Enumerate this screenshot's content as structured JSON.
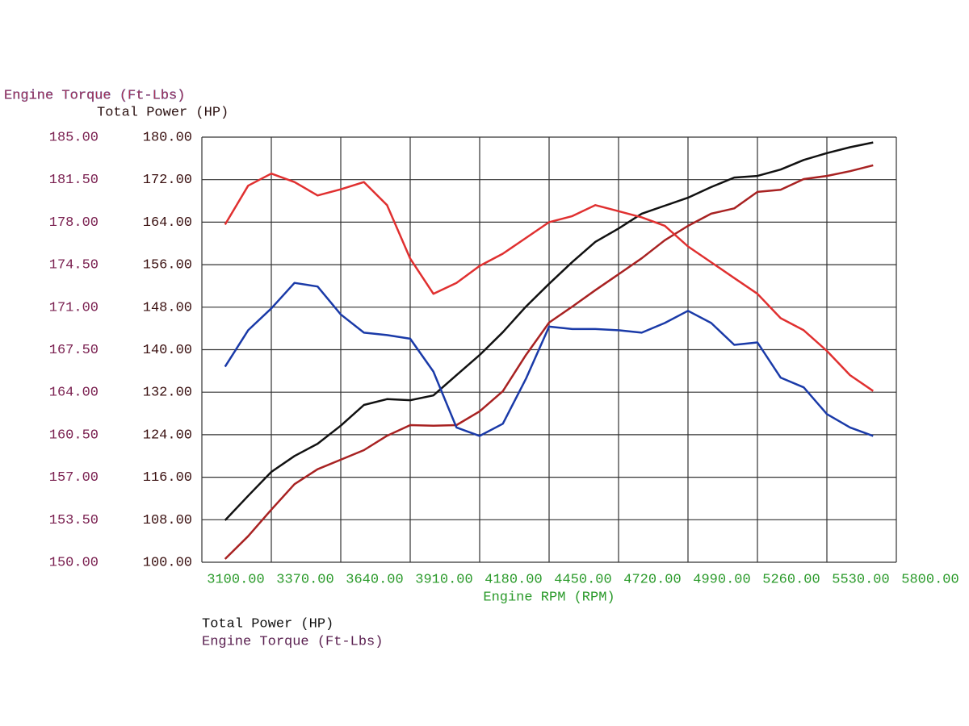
{
  "chart_data": {
    "type": "line",
    "y2_label": "Engine Torque (Ft-Lbs)",
    "y_label": "Total Power (HP)",
    "x_label": "Engine RPM (RPM)",
    "legend": [
      "Total Power (HP)",
      "Engine Torque (Ft-Lbs)"
    ],
    "grid": true,
    "xlim": [
      3100,
      5800
    ],
    "xticks": [
      {
        "value": 3100,
        "label": "3100.00"
      },
      {
        "value": 3370,
        "label": "3370.00"
      },
      {
        "value": 3640,
        "label": "3640.00"
      },
      {
        "value": 3910,
        "label": "3910.00"
      },
      {
        "value": 4180,
        "label": "4180.00"
      },
      {
        "value": 4450,
        "label": "4450.00"
      },
      {
        "value": 4720,
        "label": "4720.00"
      },
      {
        "value": 4990,
        "label": "4990.00"
      },
      {
        "value": 5260,
        "label": "5260.00"
      },
      {
        "value": 5530,
        "label": "5530.00"
      },
      {
        "value": 5800,
        "label": "5800.00"
      }
    ],
    "ylim": [
      100,
      180
    ],
    "yticks": [
      {
        "value": 100,
        "label": "100.00"
      },
      {
        "value": 108,
        "label": "108.00"
      },
      {
        "value": 116,
        "label": "116.00"
      },
      {
        "value": 124,
        "label": "124.00"
      },
      {
        "value": 132,
        "label": "132.00"
      },
      {
        "value": 140,
        "label": "140.00"
      },
      {
        "value": 148,
        "label": "148.00"
      },
      {
        "value": 156,
        "label": "156.00"
      },
      {
        "value": 164,
        "label": "164.00"
      },
      {
        "value": 172,
        "label": "172.00"
      },
      {
        "value": 180,
        "label": "180.00"
      }
    ],
    "y2lim": [
      150,
      185
    ],
    "y2ticks": [
      {
        "value": 150,
        "label": "150.00"
      },
      {
        "value": 153.5,
        "label": "153.50"
      },
      {
        "value": 157,
        "label": "157.00"
      },
      {
        "value": 160.5,
        "label": "160.50"
      },
      {
        "value": 164,
        "label": "164.00"
      },
      {
        "value": 167.5,
        "label": "167.50"
      },
      {
        "value": 171,
        "label": "171.00"
      },
      {
        "value": 174.5,
        "label": "174.50"
      },
      {
        "value": 178,
        "label": "178.00"
      },
      {
        "value": 181.5,
        "label": "181.50"
      },
      {
        "value": 185,
        "label": "185.00"
      }
    ],
    "x": [
      3190,
      3280,
      3370,
      3460,
      3550,
      3640,
      3730,
      3820,
      3910,
      4000,
      4090,
      4180,
      4270,
      4360,
      4450,
      4540,
      4630,
      4720,
      4810,
      4900,
      4990,
      5080,
      5170,
      5260,
      5350,
      5440,
      5530,
      5620,
      5710
    ],
    "series": [
      {
        "color": "#111111",
        "values": [
          107.9,
          112.5,
          117.0,
          120.0,
          122.3,
          125.7,
          129.6,
          130.7,
          130.5,
          131.4,
          135.2,
          139.0,
          143.3,
          148.1,
          152.4,
          156.5,
          160.3,
          162.8,
          165.6,
          167.1,
          168.6,
          170.6,
          172.4,
          172.7,
          173.9,
          175.7,
          177.0,
          178.1,
          179.0
        ]
      },
      {
        "color": "#a82222",
        "values": [
          100.6,
          104.9,
          109.9,
          114.7,
          117.5,
          119.3,
          121.1,
          123.8,
          125.8,
          125.7,
          125.8,
          128.4,
          132.2,
          139.0,
          145.1,
          148.1,
          151.2,
          154.2,
          157.2,
          160.6,
          163.3,
          165.6,
          166.6,
          169.7,
          170.1,
          172.1,
          172.7,
          173.6,
          174.7
        ]
      },
      {
        "color": "#e03030",
        "axis": "y2",
        "values": [
          177.8,
          181.0,
          182.0,
          181.3,
          180.2,
          180.7,
          181.3,
          179.4,
          175.0,
          172.1,
          173.0,
          174.4,
          175.4,
          176.7,
          178.0,
          178.5,
          179.4,
          178.9,
          178.4,
          177.7,
          176.0,
          174.7,
          173.4,
          172.1,
          170.1,
          169.1,
          167.4,
          165.4,
          164.1
        ]
      },
      {
        "color": "#1a3aa8",
        "axis": "y2",
        "values": [
          166.1,
          169.1,
          170.9,
          173.0,
          172.7,
          170.4,
          168.9,
          168.7,
          168.4,
          165.7,
          161.1,
          160.4,
          161.4,
          165.1,
          169.4,
          169.2,
          169.2,
          169.1,
          168.9,
          169.7,
          170.7,
          169.7,
          167.9,
          168.1,
          165.2,
          164.4,
          162.2,
          161.1,
          160.4
        ]
      }
    ]
  }
}
